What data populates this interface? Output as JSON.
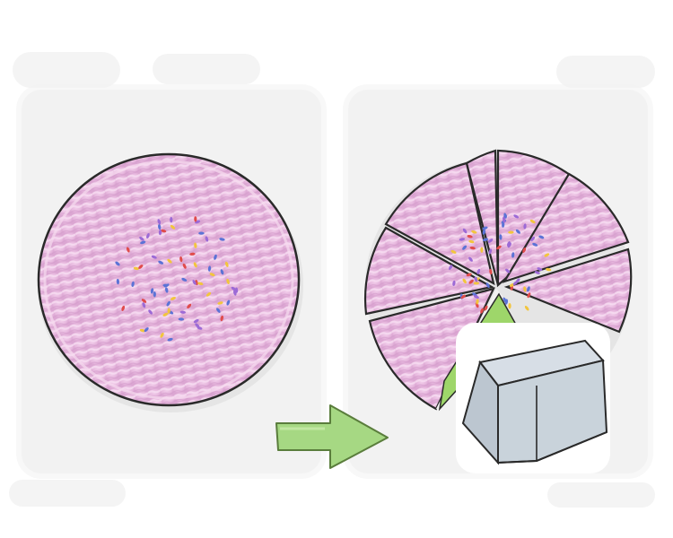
{
  "illustration": {
    "left_panel": {
      "subject": "whole-pie"
    },
    "right_panel": {
      "subject": "sliced-pie",
      "slice_count": 8,
      "highlighted_slice_color": "#9ed66a"
    },
    "arrow": {
      "direction": "right",
      "color": "#a6d883"
    },
    "overlay_icon": {
      "name": "keyboard-key-icon",
      "color": "#c9d3db"
    },
    "colors": {
      "panel_bg": "#f2f2f2",
      "pie_fill": "#e9bfe1",
      "pie_outline": "#2a2a2a",
      "sprinkles": [
        "#e04b4b",
        "#5b73d6",
        "#f2c53d",
        "#9c6ad6"
      ]
    }
  }
}
